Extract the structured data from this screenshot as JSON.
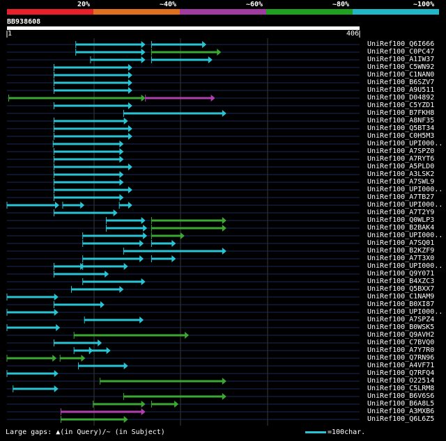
{
  "query": {
    "id": "BB938608",
    "start": "1",
    "end": "406",
    "length": 406
  },
  "color_scale": {
    "labels": [
      "20%",
      "~40%",
      "~60%",
      "~80%",
      "~100%"
    ],
    "colors": [
      "#e8202a",
      "#e07020",
      "#a03ca0",
      "#20a020",
      "#20b8c8"
    ]
  },
  "hit_colors": {
    "c": "#29c5d6",
    "g": "#3aa832",
    "m": "#b040b0"
  },
  "hits": [
    {
      "name": "UniRef100_Q6I666",
      "segs": [
        [
          80,
          160,
          "c"
        ],
        [
          167,
          230,
          "c"
        ]
      ]
    },
    {
      "name": "UniRef100_C0PC47",
      "segs": [
        [
          80,
          160,
          "c"
        ],
        [
          167,
          247,
          "g"
        ]
      ]
    },
    {
      "name": "UniRef100_A1IW37",
      "segs": [
        [
          97,
          160,
          "c"
        ],
        [
          167,
          237,
          "c"
        ]
      ]
    },
    {
      "name": "UniRef100_C5WN92",
      "segs": [
        [
          55,
          145,
          "c"
        ]
      ]
    },
    {
      "name": "UniRef100_C1NAN0",
      "segs": [
        [
          55,
          145,
          "c"
        ]
      ]
    },
    {
      "name": "UniRef100_B6SZV7",
      "segs": [
        [
          55,
          145,
          "c"
        ]
      ]
    },
    {
      "name": "UniRef100_A9U511",
      "segs": [
        [
          55,
          145,
          "c"
        ]
      ]
    },
    {
      "name": "UniRef100_D04892",
      "segs": [
        [
          3,
          160,
          "g"
        ],
        [
          160,
          240,
          "m"
        ]
      ]
    },
    {
      "name": "UniRef100_C5YZD1",
      "segs": [
        [
          55,
          145,
          "c"
        ]
      ]
    },
    {
      "name": "UniRef100_B7FKH8",
      "segs": [
        [
          135,
          253,
          "c"
        ]
      ]
    },
    {
      "name": "UniRef100_A8NF35",
      "segs": [
        [
          55,
          140,
          "c"
        ]
      ]
    },
    {
      "name": "UniRef100_Q5BT34",
      "segs": [
        [
          55,
          145,
          "c"
        ]
      ]
    },
    {
      "name": "UniRef100_C0H5M3",
      "segs": [
        [
          55,
          145,
          "c"
        ]
      ]
    },
    {
      "name": "UniRef100_UPI000..",
      "segs": [
        [
          54,
          135,
          "c"
        ]
      ]
    },
    {
      "name": "UniRef100_A7SPZ0",
      "segs": [
        [
          55,
          135,
          "c"
        ]
      ]
    },
    {
      "name": "UniRef100_A7RYT6",
      "segs": [
        [
          55,
          135,
          "c"
        ]
      ]
    },
    {
      "name": "UniRef100_A5PLD0",
      "segs": [
        [
          55,
          145,
          "c"
        ]
      ]
    },
    {
      "name": "UniRef100_A3LSK2",
      "segs": [
        [
          55,
          135,
          "c"
        ]
      ]
    },
    {
      "name": "UniRef100_A7SWL9",
      "segs": [
        [
          55,
          135,
          "c"
        ]
      ]
    },
    {
      "name": "UniRef100_UPI000..",
      "segs": [
        [
          55,
          145,
          "c"
        ]
      ]
    },
    {
      "name": "UniRef100_A7TB27",
      "segs": [
        [
          55,
          135,
          "c"
        ]
      ]
    },
    {
      "name": "UniRef100_UPI000..",
      "segs": [
        [
          1,
          61,
          "c"
        ],
        [
          65,
          90,
          "c"
        ],
        [
          130,
          145,
          "c"
        ]
      ]
    },
    {
      "name": "UniRef100_A7T2Y9",
      "segs": [
        [
          55,
          128,
          "c"
        ]
      ]
    },
    {
      "name": "UniRef100_Q0WLP3",
      "segs": [
        [
          115,
          160,
          "c"
        ],
        [
          167,
          253,
          "g"
        ]
      ]
    },
    {
      "name": "UniRef100_B2BAK4",
      "segs": [
        [
          115,
          162,
          "c"
        ],
        [
          167,
          253,
          "g"
        ]
      ]
    },
    {
      "name": "UniRef100_UPI000..",
      "segs": [
        [
          88,
          162,
          "c"
        ],
        [
          167,
          205,
          "g"
        ]
      ]
    },
    {
      "name": "UniRef100_A7SQ01",
      "segs": [
        [
          88,
          158,
          "c"
        ],
        [
          167,
          195,
          "c"
        ]
      ]
    },
    {
      "name": "UniRef100_B2KZF9",
      "segs": [
        [
          135,
          253,
          "c"
        ]
      ]
    },
    {
      "name": "UniRef100_A7T3X0",
      "segs": [
        [
          88,
          158,
          "c"
        ],
        [
          167,
          195,
          "c"
        ]
      ]
    },
    {
      "name": "UniRef100_UPI000..",
      "segs": [
        [
          55,
          90,
          "c"
        ],
        [
          88,
          140,
          "c"
        ]
      ]
    },
    {
      "name": "UniRef100_Q9Y071",
      "segs": [
        [
          55,
          118,
          "c"
        ]
      ]
    },
    {
      "name": "UniRef100_B4XZC3",
      "segs": [
        [
          88,
          160,
          "c"
        ]
      ]
    },
    {
      "name": "UniRef100_Q5BXX7",
      "segs": [
        [
          75,
          135,
          "c"
        ]
      ]
    },
    {
      "name": "UniRef100_C1NAM9",
      "segs": [
        [
          1,
          60,
          "c"
        ]
      ]
    },
    {
      "name": "UniRef100_B0XI87",
      "segs": [
        [
          55,
          113,
          "c"
        ]
      ]
    },
    {
      "name": "UniRef100_UPI000..",
      "segs": [
        [
          1,
          60,
          "c"
        ]
      ]
    },
    {
      "name": "UniRef100_A7SPZ4",
      "segs": [
        [
          90,
          158,
          "c"
        ]
      ]
    },
    {
      "name": "UniRef100_B0WSK5",
      "segs": [
        [
          1,
          62,
          "c"
        ]
      ]
    },
    {
      "name": "UniRef100_Q9AVH2",
      "segs": [
        [
          78,
          210,
          "g"
        ]
      ]
    },
    {
      "name": "UniRef100_C7BVQ0",
      "segs": [
        [
          55,
          110,
          "c"
        ]
      ]
    },
    {
      "name": "UniRef100_A7Y7R0",
      "segs": [
        [
          78,
          100,
          "c"
        ],
        [
          96,
          120,
          "c"
        ]
      ]
    },
    {
      "name": "UniRef100_Q7RN96",
      "segs": [
        [
          1,
          58,
          "g"
        ],
        [
          62,
          91,
          "g"
        ]
      ]
    },
    {
      "name": "UniRef100_A4VF71",
      "segs": [
        [
          83,
          140,
          "c"
        ]
      ]
    },
    {
      "name": "UniRef100_Q7RFQ4",
      "segs": [
        [
          1,
          60,
          "c"
        ]
      ]
    },
    {
      "name": "UniRef100_O22514",
      "segs": [
        [
          108,
          253,
          "g"
        ]
      ]
    },
    {
      "name": "UniRef100_C5LRM8",
      "segs": [
        [
          8,
          60,
          "c"
        ]
      ]
    },
    {
      "name": "UniRef100_B6V6S6",
      "segs": [
        [
          135,
          253,
          "g"
        ]
      ]
    },
    {
      "name": "UniRef100_B6A8L5",
      "segs": [
        [
          100,
          160,
          "g"
        ],
        [
          167,
          198,
          "g"
        ]
      ]
    },
    {
      "name": "UniRef100_A3MXB6",
      "segs": [
        [
          63,
          160,
          "m"
        ]
      ]
    },
    {
      "name": "UniRef100_Q6L6Z5",
      "segs": [
        [
          63,
          140,
          "g"
        ]
      ]
    }
  ],
  "footer": {
    "gaps_label": "Large gaps:",
    "query_gap": "(in Query)/",
    "subject_gap": "~ (in Subject)",
    "scale_label": "=100char."
  }
}
